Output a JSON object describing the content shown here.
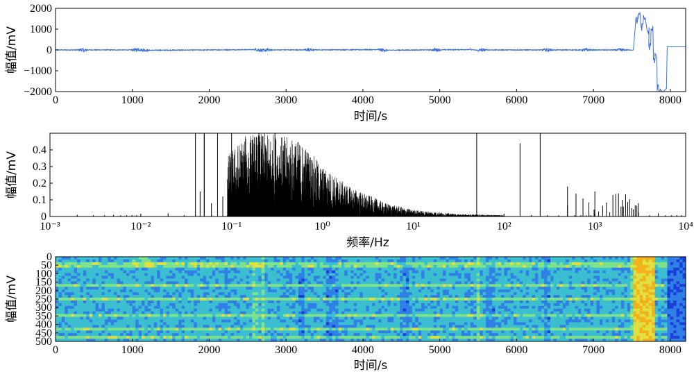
{
  "chart_data": [
    {
      "type": "line",
      "title": "",
      "xlabel": "时间/s",
      "ylabel": "幅值/mV",
      "xlim": [
        0,
        8200
      ],
      "ylim": [
        -2000,
        2000
      ],
      "xticks": [
        "0",
        "1000",
        "2000",
        "3000",
        "4000",
        "5000",
        "6000",
        "7000",
        "8000"
      ],
      "yticks": [
        "2000",
        "1000",
        "0",
        "−1000",
        "−2000"
      ],
      "color": "#3a6fd8",
      "x": [
        0,
        300,
        330,
        380,
        420,
        1000,
        1080,
        1200,
        2600,
        2700,
        2800,
        4200,
        4300,
        5400,
        5500,
        5600,
        7400,
        7520,
        7550,
        7580,
        7620,
        7650,
        7700,
        7720,
        7750,
        7780,
        7800,
        7830,
        7870,
        7950,
        7960,
        8200
      ],
      "values": [
        0,
        10,
        60,
        -70,
        15,
        5,
        70,
        -75,
        75,
        -70,
        10,
        60,
        -60,
        90,
        -90,
        10,
        0,
        0,
        1400,
        1650,
        1100,
        1500,
        900,
        200,
        1000,
        -450,
        -300,
        -1850,
        -1880,
        -1850,
        150,
        150
      ]
    },
    {
      "type": "line",
      "title": "",
      "xlabel": "频率/Hz",
      "ylabel": "幅值/mV",
      "xscale": "log",
      "xlim": [
        0.001,
        10000
      ],
      "ylim": [
        0,
        0.5
      ],
      "xticks": [
        "10⁻³",
        "10⁻²",
        "10⁻¹",
        "10⁰",
        "10¹",
        "10²",
        "10³",
        "10⁴"
      ],
      "yticks": [
        "0",
        "0.1",
        "0.2",
        "0.3",
        "0.4"
      ],
      "color": "#000000",
      "x": [
        0.002,
        0.005,
        0.01,
        0.02,
        0.05,
        0.1,
        0.2,
        0.3,
        0.5,
        1,
        2,
        5,
        10,
        20,
        50,
        100,
        150,
        250,
        500,
        1000,
        2000,
        3000,
        5000,
        10000
      ],
      "values": [
        0.01,
        0.01,
        0.01,
        0.02,
        0.5,
        0.5,
        0.5,
        0.5,
        0.42,
        0.27,
        0.15,
        0.07,
        0.03,
        0.015,
        0.5,
        0.01,
        0.44,
        0.5,
        0.18,
        0.15,
        0.1,
        0.08,
        0.02,
        0.01
      ]
    },
    {
      "type": "heatmap",
      "title": "",
      "xlabel": "时间/s",
      "ylabel": "幅值/mV",
      "xlim": [
        0,
        8200
      ],
      "ylim": [
        500,
        0
      ],
      "xticks": [
        "0",
        "1000",
        "2000",
        "3000",
        "4000",
        "5000",
        "6000",
        "7000",
        "8000"
      ],
      "yticks": [
        "0",
        "50",
        "100",
        "150",
        "200",
        "250",
        "300",
        "350",
        "400",
        "450",
        "500"
      ],
      "colormap": [
        "#1a3fd9",
        "#2f7fe6",
        "#3bbfd0",
        "#7fe28a",
        "#e0e040",
        "#f2b21c"
      ],
      "high_rows": [
        48,
        170,
        250,
        350,
        430,
        480
      ],
      "dark_columns": [
        1000,
        1900,
        2000,
        3200,
        3550,
        3650,
        4300,
        4500,
        4550,
        5650,
        5700,
        6400
      ],
      "bright_columns": [
        1000,
        1900,
        2000,
        2600,
        2700,
        4300,
        5500,
        7520,
        7550,
        7580
      ],
      "low_region": [
        7950,
        8200
      ]
    }
  ]
}
